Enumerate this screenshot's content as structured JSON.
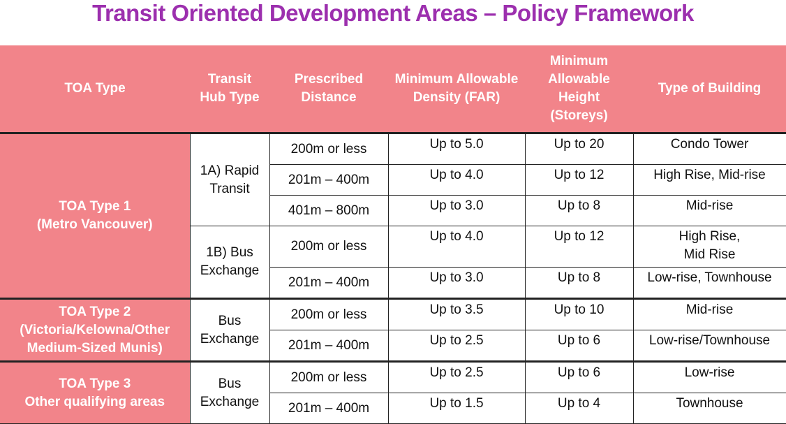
{
  "title": "Transit Oriented Development Areas – Policy Framework",
  "headers": [
    "TOA Type",
    "Transit Hub Type",
    "Prescribed Distance",
    "Minimum Allowable Density (FAR)",
    "Minimum Allowable Height (Storeys)",
    "Type of Building"
  ],
  "colors": {
    "title": "#9c2fae",
    "header_bg": "#f2848a"
  },
  "groups": [
    {
      "toa": [
        "TOA Type 1",
        "(Metro Vancouver)"
      ],
      "hubs": [
        {
          "hub": [
            "1A) Rapid",
            "Transit"
          ],
          "rows": [
            [
              "200m or less",
              "Up to 5.0",
              "Up to 20",
              "Condo Tower"
            ],
            [
              "201m – 400m",
              "Up to 4.0",
              "Up to 12",
              "High Rise, Mid-rise"
            ],
            [
              "401m – 800m",
              "Up to 3.0",
              "Up to 8",
              "Mid-rise"
            ]
          ]
        },
        {
          "hub": [
            "1B) Bus",
            "Exchange"
          ],
          "rows": [
            [
              "200m or less",
              "Up to 4.0",
              "Up to 12",
              "High Rise,",
              "Mid Rise"
            ],
            [
              "201m – 400m",
              "Up to 3.0",
              "Up to 8",
              "Low-rise, Townhouse"
            ]
          ]
        }
      ]
    },
    {
      "toa": [
        "TOA Type 2",
        "(Victoria/Kelowna/Other",
        "Medium-Sized Munis)"
      ],
      "hubs": [
        {
          "hub": [
            "Bus",
            "Exchange"
          ],
          "rows": [
            [
              "200m or less",
              "Up to 3.5",
              "Up to 10",
              "Mid-rise"
            ],
            [
              "201m – 400m",
              "Up to 2.5",
              "Up to 6",
              "Low-rise/Townhouse"
            ]
          ]
        }
      ]
    },
    {
      "toa": [
        "TOA Type 3",
        "Other qualifying areas"
      ],
      "hubs": [
        {
          "hub": [
            "Bus",
            "Exchange"
          ],
          "rows": [
            [
              "200m or less",
              "Up to 2.5",
              "Up to 6",
              "Low-rise"
            ],
            [
              "201m – 400m",
              "Up to 1.5",
              "Up to 4",
              "Townhouse"
            ]
          ]
        }
      ]
    }
  ]
}
